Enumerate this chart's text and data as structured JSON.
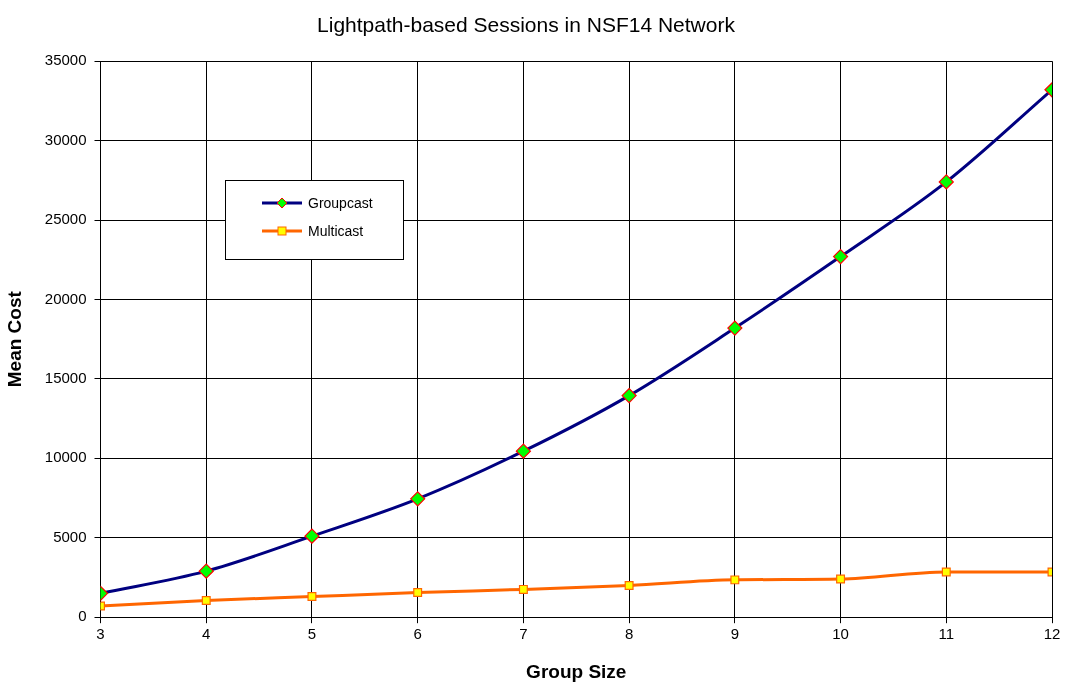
{
  "chart_data": {
    "type": "line",
    "title": "Lightpath-based Sessions in NSF14 Network",
    "xlabel": "Group Size",
    "ylabel": "Mean Cost",
    "x": [
      3,
      4,
      5,
      6,
      7,
      8,
      9,
      10,
      11,
      12
    ],
    "series": [
      {
        "name": "Groupcast",
        "color": "#000080",
        "marker": "diamond",
        "values": [
          1500,
          2900,
          5100,
          7450,
          10450,
          13950,
          18200,
          22700,
          27400,
          33200
        ]
      },
      {
        "name": "Multicast",
        "color": "#ff6600",
        "marker": "square",
        "values": [
          700,
          1050,
          1300,
          1550,
          1750,
          2000,
          2350,
          2400,
          2850,
          2850
        ]
      }
    ],
    "xlim": [
      3,
      12
    ],
    "xticks": [
      3,
      4,
      5,
      6,
      7,
      8,
      9,
      10,
      11,
      12
    ],
    "ylim": [
      0,
      35000
    ],
    "yticks": [
      0,
      5000,
      10000,
      15000,
      20000,
      25000,
      30000,
      35000
    ],
    "grid": true,
    "legend": "top left",
    "line_style": "solid"
  }
}
